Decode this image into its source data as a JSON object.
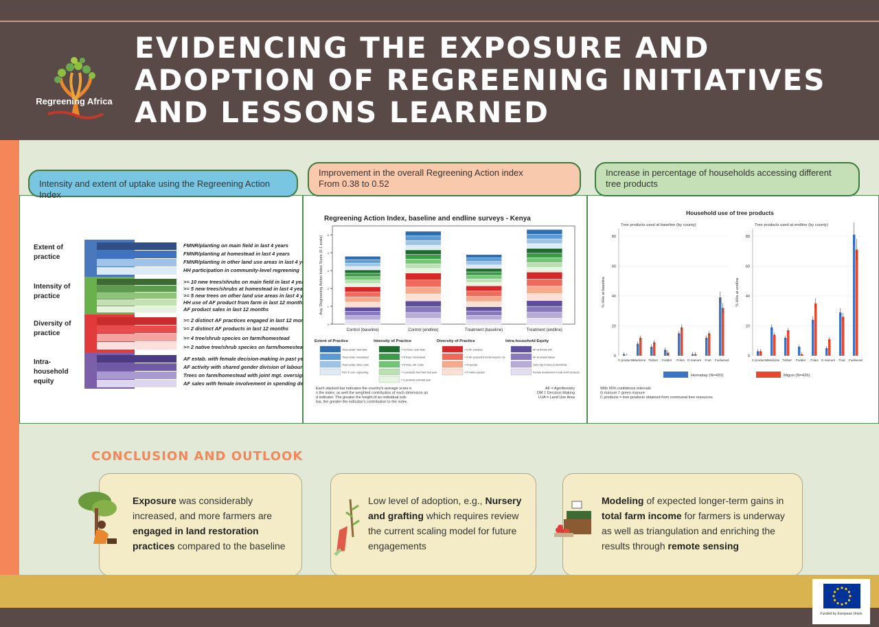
{
  "header": {
    "logo_text": "Regreening Africa",
    "title": "EVIDENCING THE EXPOSURE AND ADOPTION OF REGREENING INITIATIVES AND LESSONS LEARNED"
  },
  "panel1": {
    "pill": "Intensity and extent of uptake using the Regreening Action Index",
    "groups": [
      {
        "label": "Extent of practice",
        "color": "#4a78bd",
        "items": [
          "FMNR/planting on main field in last 4 years",
          "FMNR/planting at homestead in last 4 years",
          "FMNR/planting in other land use areas in last 4 years",
          "HH participation in community-level regreening"
        ]
      },
      {
        "label": "Intensity of practice",
        "color": "#6ab04c",
        "items": [
          ">= 10 new trees/shrubs on main field in last 4 years",
          ">= 5 new trees/shrubs at homestead in last 4 years",
          ">= 5 new trees on other land use areas in last 4 years",
          "HH use of AF product from farm in last 12 months",
          "AF product sales in last 12 months"
        ]
      },
      {
        "label": "Diversity of practice",
        "color": "#e03a3a",
        "items": [
          ">= 2 distinct AF practices engaged in last 12 months",
          ">= 2 distinct AF products in last 12 months",
          ">= 4 tree/shrub species on farm/homestead",
          ">= 2 native tree/shrub species on farm/homestead"
        ]
      },
      {
        "label": "Intra-household equity",
        "color": "#7b5fa8",
        "items": [
          "AF estab. with female decision-making in past year",
          "AF activity with shared gender division of labour",
          "Trees on farm/homestead with joint mgt. oversight",
          "AF sales with female involvement in spending decisions"
        ]
      }
    ]
  },
  "panel2": {
    "pill_line1": "Improvement in the overall Regreening Action index",
    "pill_line2": "From 0.38 to 0.52",
    "chart_data": {
      "type": "bar",
      "title": "Regreening Action Index, baseline and endline surveys - Kenya",
      "ylabel": "Avg. Regreening Action Index Score (0-1 scale)",
      "categories": [
        "Control (baseline)",
        "Control (endline)",
        "Treatment (baseline)",
        "Treatment (endline)"
      ],
      "totals": [
        0.38,
        0.52,
        0.39,
        0.53
      ],
      "ylim": [
        0,
        0.55
      ],
      "ticks": [
        "0",
        ".1",
        ".2",
        ".3",
        ".4",
        ".5"
      ],
      "legend_titles": [
        "Extent of Practice",
        "Intensity of Practice",
        "Diversity of Practice",
        "Intra-household Equity"
      ],
      "legend_extent": [
        "Trees estab. main field",
        "Trees estab. homestead",
        "Trees estab. other LUAs",
        "Part. in com. regreening"
      ],
      "legend_intensity": [
        ">=10 trees, main field",
        ">=5 trees, homestead",
        ">=5 trees, oth. LUAs",
        ">=1 products from farm last year",
        ">=1 products sold last year"
      ],
      "legend_diversity": [
        ">=2 AF practices",
        ">=2 AF products from farm/comm. for",
        ">=4 species",
        ">=2 native species"
      ],
      "legend_equity": [
        "AF w/ female DM",
        "AF w/ shared labour",
        "Joint mgt of trees on farm/hmst",
        "Female involvement in sale of AF products"
      ],
      "palette_extent": [
        "#2e6db0",
        "#5b9bd5",
        "#9dc3e6",
        "#deebf7"
      ],
      "palette_intensity": [
        "#1d6b2e",
        "#3c9a48",
        "#74c476",
        "#b9e0b0",
        "#e5f5e0"
      ],
      "palette_diversity": [
        "#d62728",
        "#ef6a5a",
        "#f7a98c",
        "#fde0d2"
      ],
      "palette_equity": [
        "#5e4f9e",
        "#8878bd",
        "#b6acd6",
        "#e3dff0"
      ]
    },
    "notes": "Each stacked bar indicates the country's average score on the index, as well the weighted contribution of each dimension and indicator. The greater the height of an individual sub-bar, the greater the indicator's contribution to the index.",
    "abbrev": [
      "AF = Agroforestry",
      "DM = Decision Making",
      "LUA = Land Use Area"
    ]
  },
  "panel3": {
    "pill": "Increase in percentage of households accessing different tree products",
    "chart_data": {
      "type": "bar",
      "title": "Household use of tree products",
      "subtitle_left": "Tree products used at baseline (by county)",
      "subtitle_right": "Tree products used at endline (by county)",
      "ylabel_left": "% HHs at baseline",
      "ylabel_right": "% HHs at endline",
      "categories": [
        "C.products",
        "Medicine",
        "Timber",
        "Fodder",
        "Poles",
        "G.manure",
        "Fruit",
        "Fuelwood"
      ],
      "ylim": [
        0,
        85
      ],
      "yticks": [
        "0",
        "20",
        "40",
        "60",
        "80"
      ],
      "series_baseline": [
        {
          "name": "Homabay (N=420)",
          "values": [
            1,
            8,
            6,
            4,
            15,
            1,
            12,
            39
          ]
        },
        {
          "name": "Migori (N=426)",
          "values": [
            0,
            12,
            9,
            2,
            19,
            1,
            15,
            32
          ]
        }
      ],
      "series_endline": [
        {
          "name": "Homabay (N=420)",
          "values": [
            3,
            19,
            12,
            6,
            24,
            5,
            29,
            81
          ]
        },
        {
          "name": "Migori (N=426)",
          "values": [
            3,
            14,
            17,
            1,
            35,
            11,
            26,
            71
          ]
        }
      ],
      "colors": [
        "#3a75c4",
        "#e8492e"
      ]
    },
    "notes": [
      "With 95% confidence intervals",
      "G.manure = green manure",
      "C.products = tree products obtained from communal tree resources"
    ]
  },
  "conclusion": {
    "title": "CONCLUSION AND OUTLOOK",
    "card1": {
      "b1": "Exposure",
      "t1": " was considerably increased, and more farmers are ",
      "b2": "engaged in land restoration practices",
      "t2": " compared to the baseline"
    },
    "card2": {
      "t1": "Low level of adoption, e.g., ",
      "b1": "Nursery and grafting",
      "t2": " which requires review the current scaling model for future engagements"
    },
    "card3": {
      "b1": "Modeling",
      "t1": " of expected longer-term gains in ",
      "b2": "total farm income",
      "t2": " for farmers is  underway as well as triangulation and enriching the results through ",
      "b3": "remote sensing"
    }
  },
  "footer": {
    "eu_text": "Funded by European Union"
  }
}
